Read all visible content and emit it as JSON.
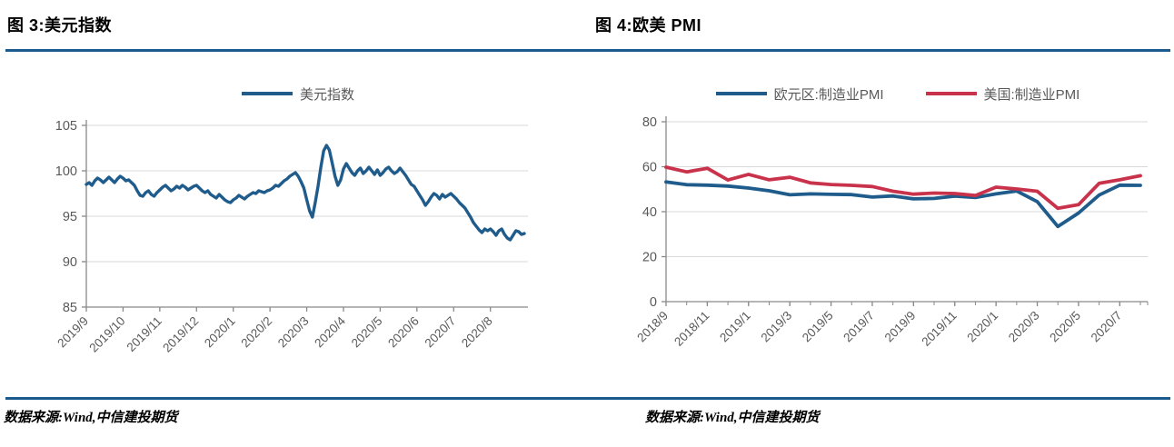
{
  "page": {
    "source_left": "数据来源:Wind,中信建投期货",
    "source_right": "数据来源:Wind,中信建投期货"
  },
  "colors": {
    "rule_blue": "#1A5A8C",
    "line_blue": "#1F5C8B",
    "line_red": "#C9324B",
    "grid": "#D9D9D9",
    "axis_line": "#898989",
    "axis_text": "#595959"
  },
  "chart_data": [
    {
      "id": "dxy",
      "type": "line",
      "title": "图 3:美元指数",
      "legend_position": "top-center",
      "grid": true,
      "ylim": [
        85,
        105
      ],
      "y_ticks": [
        85,
        90,
        95,
        100,
        105
      ],
      "x_tick_labels": [
        "2019/9",
        "2019/10",
        "2019/11",
        "2019/12",
        "2020/1",
        "2020/2",
        "2020/3",
        "2020/4",
        "2020/5",
        "2020/6",
        "2020/7",
        "2020/8"
      ],
      "series": [
        {
          "name": "美元指数",
          "color": "#1F5C8B",
          "values": [
            98.5,
            98.7,
            98.4,
            98.9,
            99.2,
            99.0,
            98.7,
            99.0,
            99.3,
            99.0,
            98.7,
            99.1,
            99.4,
            99.2,
            98.9,
            99.0,
            98.7,
            98.4,
            97.8,
            97.3,
            97.2,
            97.6,
            97.8,
            97.4,
            97.2,
            97.6,
            97.9,
            98.2,
            98.4,
            98.1,
            97.8,
            98.0,
            98.3,
            98.1,
            98.4,
            98.2,
            97.9,
            98.1,
            98.3,
            98.4,
            98.1,
            97.8,
            97.6,
            97.8,
            97.4,
            97.2,
            97.0,
            97.4,
            97.1,
            96.8,
            96.6,
            96.5,
            96.8,
            97.0,
            97.3,
            97.1,
            96.9,
            97.2,
            97.4,
            97.6,
            97.5,
            97.8,
            97.7,
            97.6,
            97.8,
            97.9,
            98.1,
            98.4,
            98.3,
            98.6,
            98.9,
            99.1,
            99.4,
            99.6,
            99.8,
            99.4,
            98.8,
            98.1,
            96.8,
            95.6,
            94.9,
            96.5,
            98.3,
            100.4,
            102.2,
            102.8,
            102.3,
            100.9,
            99.4,
            98.4,
            99.0,
            100.2,
            100.8,
            100.3,
            99.8,
            99.5,
            100.0,
            100.3,
            99.7,
            100.0,
            100.4,
            100.0,
            99.6,
            100.1,
            99.5,
            99.8,
            100.2,
            100.4,
            100.0,
            99.7,
            99.9,
            100.3,
            99.9,
            99.5,
            99.0,
            98.5,
            98.3,
            97.8,
            97.3,
            96.8,
            96.2,
            96.6,
            97.1,
            97.5,
            97.3,
            96.9,
            97.4,
            97.1,
            97.3,
            97.5,
            97.2,
            96.9,
            96.5,
            96.2,
            95.9,
            95.4,
            94.9,
            94.3,
            93.9,
            93.5,
            93.2,
            93.6,
            93.4,
            93.6,
            93.3,
            92.9,
            93.4,
            93.6,
            93.0,
            92.6,
            92.4,
            92.9,
            93.4,
            93.3,
            93.0,
            93.1
          ]
        }
      ]
    },
    {
      "id": "pmi",
      "type": "line",
      "title": "图 4:欧美 PMI",
      "legend_position": "top-center",
      "grid": true,
      "ylim": [
        0,
        80
      ],
      "y_ticks": [
        0,
        20,
        40,
        60,
        80
      ],
      "categories": [
        "2018/9",
        "2018/10",
        "2018/11",
        "2018/12",
        "2019/1",
        "2019/2",
        "2019/3",
        "2019/4",
        "2019/5",
        "2019/6",
        "2019/7",
        "2019/8",
        "2019/9",
        "2019/10",
        "2019/11",
        "2019/12",
        "2020/1",
        "2020/2",
        "2020/3",
        "2020/4",
        "2020/5",
        "2020/6",
        "2020/7",
        "2020/8"
      ],
      "x_tick_labels": [
        "2018/9",
        "2018/11",
        "2019/1",
        "2019/3",
        "2019/5",
        "2019/7",
        "2019/9",
        "2019/11",
        "2020/1",
        "2020/3",
        "2020/5",
        "2020/7"
      ],
      "series": [
        {
          "name": "欧元区:制造业PMI",
          "color": "#1F5C8B",
          "values": [
            53.2,
            52.0,
            51.8,
            51.4,
            50.5,
            49.3,
            47.5,
            47.9,
            47.7,
            47.6,
            46.5,
            47.0,
            45.7,
            45.9,
            46.9,
            46.3,
            47.9,
            49.2,
            44.5,
            33.4,
            39.4,
            47.4,
            51.8,
            51.7
          ]
        },
        {
          "name": "美国:制造业PMI",
          "color": "#C9324B",
          "values": [
            59.8,
            57.7,
            59.3,
            54.1,
            56.6,
            54.2,
            55.3,
            52.8,
            52.1,
            51.7,
            51.2,
            49.1,
            47.8,
            48.3,
            48.1,
            47.2,
            50.9,
            50.1,
            49.1,
            41.5,
            43.1,
            52.6,
            54.2,
            56.0
          ]
        }
      ]
    }
  ]
}
